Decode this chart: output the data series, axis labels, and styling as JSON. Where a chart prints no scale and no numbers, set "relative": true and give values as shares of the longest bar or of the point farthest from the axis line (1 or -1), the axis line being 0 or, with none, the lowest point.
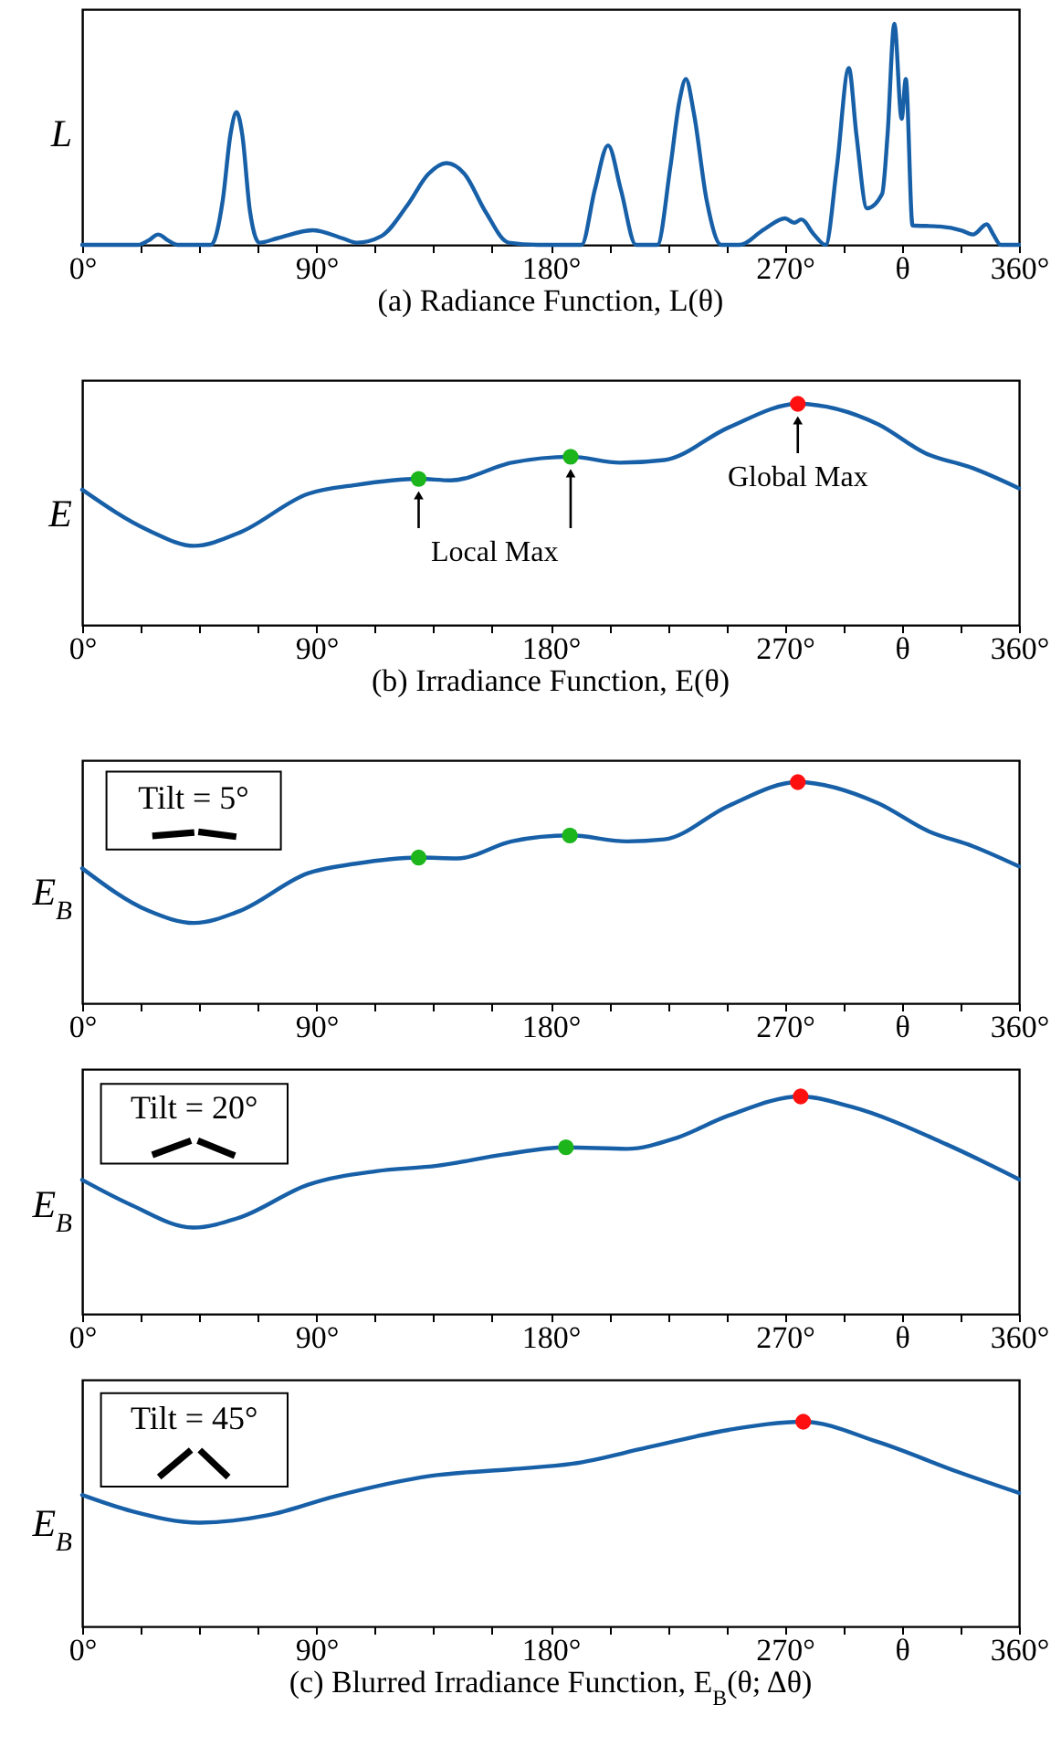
{
  "chart_data": [
    {
      "type": "line",
      "title": "(a) Radiance Function, L(θ)",
      "ylabel": "L",
      "relative": true,
      "tick_labels": "x",
      "xlim": [
        0,
        360
      ],
      "xticks": [
        {
          "value": 0,
          "label": "0°"
        },
        {
          "value": 22.5,
          "label": null
        },
        {
          "value": 45,
          "label": null
        },
        {
          "value": 67.5,
          "label": null
        },
        {
          "value": 90,
          "label": "90°"
        },
        {
          "value": 112.5,
          "label": null
        },
        {
          "value": 135,
          "label": null
        },
        {
          "value": 157.5,
          "label": null
        },
        {
          "value": 180,
          "label": "180°"
        },
        {
          "value": 202.5,
          "label": null
        },
        {
          "value": 225,
          "label": null
        },
        {
          "value": 247.5,
          "label": null
        },
        {
          "value": 270,
          "label": "270°"
        },
        {
          "value": 292.5,
          "label": null
        },
        {
          "value": 315,
          "label": "θ"
        },
        {
          "value": 337.5,
          "label": null
        },
        {
          "value": 360,
          "label": "360°"
        }
      ],
      "x": [
        0,
        21.5,
        25.5,
        29.2,
        33,
        36.6,
        49.5,
        54,
        57,
        59.3,
        61.5,
        64.5,
        68.1,
        75,
        88.7,
        100,
        105.5,
        115,
        125,
        133,
        140,
        147,
        155,
        163.9,
        175,
        191.9,
        197,
        202.1,
        207,
        212.8,
        221,
        226,
        229.5,
        232,
        235,
        240,
        245.6,
        252.6,
        262,
        270.1,
        273.6,
        276.4,
        281,
        285.7,
        290,
        294.6,
        297.5,
        301.6,
        307.4,
        309.5,
        312.1,
        314.9,
        316.5,
        319.1,
        329.6,
        338,
        342.4,
        347.6,
        350,
        353,
        360
      ],
      "series": [
        {
          "color": "#1760a8",
          "values": [
            0,
            0,
            0.02,
            0.047,
            0.02,
            0,
            0,
            0.2,
            0.5,
            0.6,
            0.5,
            0.15,
            0.01,
            0.03,
            0.066,
            0.03,
            0.01,
            0.04,
            0.18,
            0.32,
            0.37,
            0.32,
            0.15,
            0.01,
            0,
            0,
            0.25,
            0.45,
            0.25,
            0,
            0,
            0.35,
            0.65,
            0.75,
            0.6,
            0.2,
            0,
            0,
            0.07,
            0.12,
            0.1,
            0.115,
            0.05,
            0,
            0.35,
            0.8,
            0.5,
            0.165,
            0.23,
            0.5,
            1,
            0.57,
            0.75,
            0.088,
            0.083,
            0.065,
            0.047,
            0.093,
            0.05,
            0,
            0
          ]
        }
      ]
    },
    {
      "type": "line",
      "title": "(b) Irradiance Function, E(θ)",
      "ylabel": "E",
      "relative": true,
      "tick_labels": "x",
      "xlim": [
        0,
        360
      ],
      "xticks": [
        {
          "value": 0,
          "label": "0°"
        },
        {
          "value": 22.5,
          "label": null
        },
        {
          "value": 45,
          "label": null
        },
        {
          "value": 67.5,
          "label": null
        },
        {
          "value": 90,
          "label": "90°"
        },
        {
          "value": 112.5,
          "label": null
        },
        {
          "value": 135,
          "label": null
        },
        {
          "value": 157.5,
          "label": null
        },
        {
          "value": 180,
          "label": "180°"
        },
        {
          "value": 202.5,
          "label": null
        },
        {
          "value": 225,
          "label": null
        },
        {
          "value": 247.5,
          "label": null
        },
        {
          "value": 270,
          "label": "270°"
        },
        {
          "value": 292.5,
          "label": null
        },
        {
          "value": 315,
          "label": "θ"
        },
        {
          "value": 337.5,
          "label": null
        },
        {
          "value": 360,
          "label": "360°"
        }
      ],
      "x": [
        0,
        25.5,
        43,
        60.7,
        86.8,
        105,
        129.3,
        141.6,
        165,
        187.7,
        206.7,
        223.7,
        248.4,
        275,
        305.8,
        324,
        342.3,
        360
      ],
      "series": [
        {
          "color": "#1760a8",
          "values": [
            0.612,
            0.428,
            0.358,
            0.419,
            0.593,
            0.633,
            0.661,
            0.654,
            0.734,
            0.761,
            0.734,
            0.746,
            0.893,
            1,
            0.908,
            0.777,
            0.709,
            0.618
          ]
        },
        {
          "type": "scatter",
          "marker": "circle",
          "color": "#1cb51c",
          "x": [
            129.3,
            187.7
          ],
          "values": [
            0.661,
            0.761
          ]
        },
        {
          "type": "scatter",
          "marker": "circle",
          "color": "#ff1010",
          "x": [
            275
          ],
          "values": [
            1
          ]
        }
      ],
      "annotations": [
        "Local Max",
        {
          "text": "Global Max",
          "x": 275,
          "y": 1
        }
      ]
    },
    {
      "type": "line",
      "ylabel": "E$_{B}$",
      "relative": true,
      "tick_labels": "x",
      "xlim": [
        0,
        360
      ],
      "xticks": [
        {
          "value": 0,
          "label": "0°"
        },
        {
          "value": 22.5,
          "label": null
        },
        {
          "value": 45,
          "label": null
        },
        {
          "value": 67.5,
          "label": null
        },
        {
          "value": 90,
          "label": "90°"
        },
        {
          "value": 112.5,
          "label": null
        },
        {
          "value": 135,
          "label": null
        },
        {
          "value": 157.5,
          "label": null
        },
        {
          "value": 180,
          "label": "180°"
        },
        {
          "value": 202.5,
          "label": null
        },
        {
          "value": 225,
          "label": null
        },
        {
          "value": 247.5,
          "label": null
        },
        {
          "value": 270,
          "label": "270°"
        },
        {
          "value": 292.5,
          "label": null
        },
        {
          "value": 315,
          "label": "θ"
        },
        {
          "value": 337.5,
          "label": null
        },
        {
          "value": 360,
          "label": "360°"
        }
      ],
      "x": [
        0,
        25.5,
        43,
        60.7,
        86.8,
        105,
        129.3,
        144.2,
        165,
        187.4,
        209.3,
        223.7,
        248.4,
        275,
        305.8,
        325.4,
        342.3,
        360
      ],
      "series": [
        {
          "color": "#1760a8",
          "values": [
            0.61,
            0.418,
            0.363,
            0.418,
            0.588,
            0.631,
            0.659,
            0.655,
            0.732,
            0.759,
            0.732,
            0.741,
            0.893,
            1,
            0.905,
            0.777,
            0.71,
            0.619
          ]
        },
        {
          "type": "scatter",
          "marker": "circle",
          "color": "#1cb51c",
          "x": [
            129.3,
            187.4
          ],
          "values": [
            0.659,
            0.759
          ]
        },
        {
          "type": "scatter",
          "marker": "circle",
          "color": "#ff1010",
          "x": [
            275
          ],
          "values": [
            1
          ]
        }
      ],
      "annotations": [
        "Tilt = 5°"
      ]
    },
    {
      "type": "line",
      "ylabel": "E$_{B}$",
      "relative": true,
      "tick_labels": "x",
      "xlim": [
        0,
        360
      ],
      "xticks": [
        {
          "value": 0,
          "label": "0°"
        },
        {
          "value": 22.5,
          "label": null
        },
        {
          "value": 45,
          "label": null
        },
        {
          "value": 67.5,
          "label": null
        },
        {
          "value": 90,
          "label": "90°"
        },
        {
          "value": 112.5,
          "label": null
        },
        {
          "value": 135,
          "label": null
        },
        {
          "value": 157.5,
          "label": null
        },
        {
          "value": 180,
          "label": "180°"
        },
        {
          "value": 202.5,
          "label": null
        },
        {
          "value": 225,
          "label": null
        },
        {
          "value": 247.5,
          "label": null
        },
        {
          "value": 270,
          "label": "270°"
        },
        {
          "value": 292.5,
          "label": null
        },
        {
          "value": 315,
          "label": "θ"
        },
        {
          "value": 337.5,
          "label": null
        },
        {
          "value": 360,
          "label": "360°"
        }
      ],
      "x": [
        0,
        19,
        42.5,
        60.7,
        86.8,
        112.9,
        136.3,
        162.4,
        185.9,
        209.3,
        227.6,
        248.4,
        276.1,
        295.4,
        331.9,
        360
      ],
      "series": [
        {
          "color": "#1760a8",
          "values": [
            0.616,
            0.5,
            0.397,
            0.444,
            0.594,
            0.656,
            0.681,
            0.734,
            0.766,
            0.759,
            0.806,
            0.912,
            1,
            0.953,
            0.781,
            0.619
          ]
        },
        {
          "type": "scatter",
          "marker": "circle",
          "color": "#1cb51c",
          "x": [
            185.9
          ],
          "values": [
            0.766
          ]
        },
        {
          "type": "scatter",
          "marker": "circle",
          "color": "#ff1010",
          "x": [
            276.1
          ],
          "values": [
            1
          ]
        }
      ],
      "annotations": [
        "Tilt = 20°"
      ]
    },
    {
      "type": "line",
      "title": "(c) Blurred Irradiance Function, E$_{B}$(θ; Δθ)",
      "ylabel": "E$_{B}$",
      "relative": true,
      "tick_labels": "x",
      "xlim": [
        0,
        360
      ],
      "xticks": [
        {
          "value": 0,
          "label": "0°"
        },
        {
          "value": 22.5,
          "label": null
        },
        {
          "value": 45,
          "label": null
        },
        {
          "value": 67.5,
          "label": null
        },
        {
          "value": 90,
          "label": "90°"
        },
        {
          "value": 112.5,
          "label": null
        },
        {
          "value": 135,
          "label": null
        },
        {
          "value": 157.5,
          "label": null
        },
        {
          "value": 180,
          "label": "180°"
        },
        {
          "value": 202.5,
          "label": null
        },
        {
          "value": 225,
          "label": null
        },
        {
          "value": 247.5,
          "label": null
        },
        {
          "value": 270,
          "label": "270°"
        },
        {
          "value": 292.5,
          "label": null
        },
        {
          "value": 315,
          "label": "θ"
        },
        {
          "value": 337.5,
          "label": null
        },
        {
          "value": 360,
          "label": "360°"
        }
      ],
      "x": [
        0,
        19,
        45.1,
        71.2,
        97.2,
        133.7,
        165,
        188.5,
        217.2,
        248.4,
        277.1,
        305.8,
        337.1,
        360
      ],
      "series": [
        {
          "color": "#1760a8",
          "values": [
            0.642,
            0.563,
            0.507,
            0.543,
            0.636,
            0.735,
            0.768,
            0.795,
            0.874,
            0.96,
            1,
            0.901,
            0.752,
            0.652
          ]
        },
        {
          "type": "scatter",
          "marker": "circle",
          "color": "#ff1010",
          "x": [
            277.1
          ],
          "values": [
            1
          ]
        }
      ],
      "annotations": [
        "Tilt = 45°"
      ]
    }
  ]
}
